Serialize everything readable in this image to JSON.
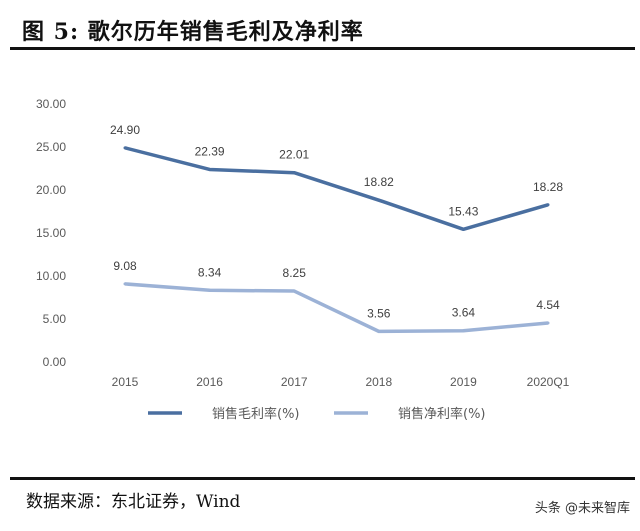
{
  "title": "图  5:  歌尔历年销售毛利及净利率",
  "source": "数据来源：东北证券，Wind",
  "watermark": "头条 @未来智库",
  "chart_data": {
    "type": "line",
    "categories": [
      "2015",
      "2016",
      "2017",
      "2018",
      "2019",
      "2020Q1"
    ],
    "ylim": [
      0,
      30
    ],
    "yticks": [
      "0.00",
      "5.00",
      "10.00",
      "15.00",
      "20.00",
      "25.00",
      "30.00"
    ],
    "grid": false,
    "legend": "bottom",
    "series": [
      {
        "name": "销售毛利率(%)",
        "values": [
          24.9,
          22.39,
          22.01,
          18.82,
          15.43,
          18.28
        ],
        "labels": [
          "24.90",
          "22.39",
          "22.01",
          "18.82",
          "15.43",
          "18.28"
        ],
        "color": "#4a6fa0"
      },
      {
        "name": "销售净利率(%)",
        "values": [
          9.08,
          8.34,
          8.25,
          3.56,
          3.64,
          4.54
        ],
        "labels": [
          "9.08",
          "8.34",
          "8.25",
          "3.56",
          "3.64",
          "4.54"
        ],
        "color": "#9cb2d6"
      }
    ]
  }
}
